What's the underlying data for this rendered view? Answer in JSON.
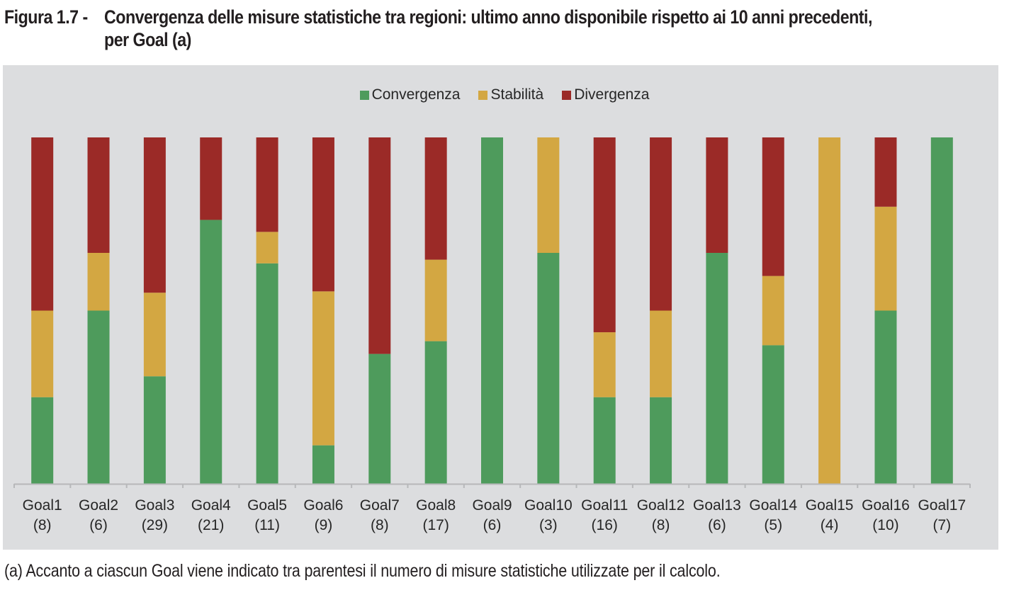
{
  "figure": {
    "number_label": "Figura 1.7 -",
    "title_line1": "Convergenza delle misure statistiche tra regioni: ultimo anno disponibile rispetto ai 10 anni precedenti,",
    "title_line2": "per Goal (a)",
    "footnote": "(a) Accanto a ciascun Goal viene indicato tra parentesi il numero di misure statistiche utilizzate per il calcolo."
  },
  "colors": {
    "Convergenza": "#4e9b5c",
    "Stabilità": "#d3a742",
    "Divergenza": "#9b2a27",
    "background": "#dcdddf",
    "axis": "#b7b8ba"
  },
  "chart_data": {
    "type": "bar",
    "stacked": "100%",
    "title": "Convergenza delle misure statistiche tra regioni: ultimo anno disponibile rispetto ai 10 anni precedenti, per Goal (a)",
    "xlabel": "",
    "ylabel": "",
    "ylim": [
      0,
      1
    ],
    "grid": false,
    "legend_position": "top-center",
    "legend": [
      "Convergenza",
      "Stabilità",
      "Divergenza"
    ],
    "categories": [
      "Goal1",
      "Goal2",
      "Goal3",
      "Goal4",
      "Goal5",
      "Goal6",
      "Goal7",
      "Goal8",
      "Goal9",
      "Goal10",
      "Goal11",
      "Goal12",
      "Goal13",
      "Goal14",
      "Goal15",
      "Goal16",
      "Goal17"
    ],
    "category_counts": [
      "(8)",
      "(6)",
      "(29)",
      "(21)",
      "(11)",
      "(9)",
      "(8)",
      "(17)",
      "(6)",
      "(3)",
      "(16)",
      "(8)",
      "(6)",
      "(5)",
      "(4)",
      "(10)",
      "(7)"
    ],
    "series": [
      {
        "name": "Convergenza",
        "values": [
          2,
          3,
          9,
          16,
          7,
          1,
          3,
          7,
          6,
          2,
          4,
          2,
          4,
          2,
          0,
          5,
          7
        ]
      },
      {
        "name": "Stabilità",
        "values": [
          2,
          1,
          7,
          0,
          1,
          4,
          0,
          4,
          0,
          1,
          3,
          2,
          0,
          1,
          4,
          3,
          0
        ]
      },
      {
        "name": "Divergenza",
        "values": [
          4,
          2,
          13,
          5,
          3,
          4,
          5,
          6,
          0,
          0,
          9,
          4,
          2,
          2,
          0,
          2,
          0
        ]
      }
    ]
  }
}
